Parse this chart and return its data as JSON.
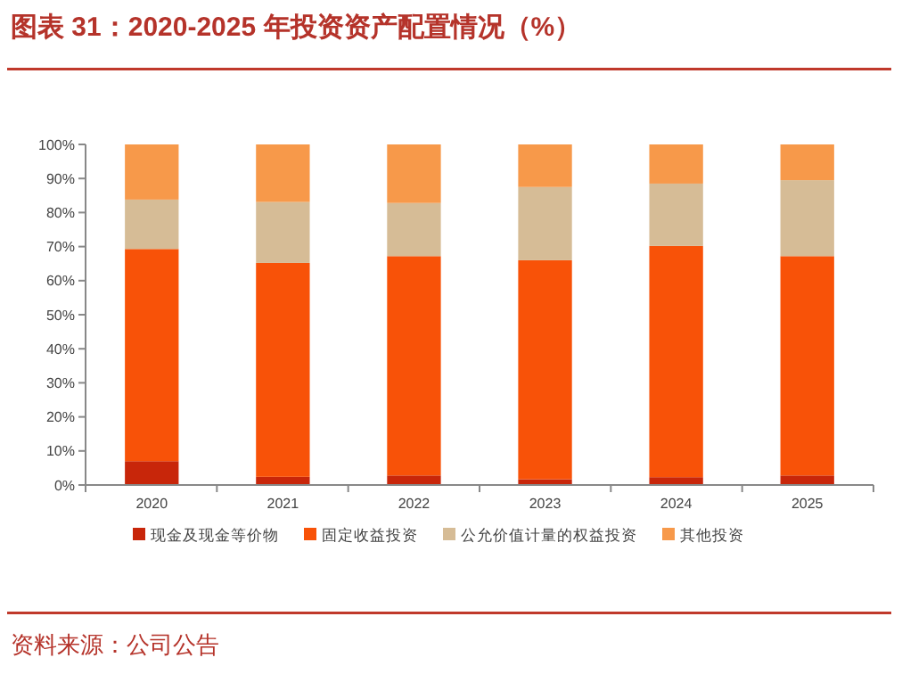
{
  "chart_data": {
    "type": "bar",
    "title": "图表 31：2020-2025 年投资资产配置情况（%）",
    "categories": [
      "2020",
      "2021",
      "2022",
      "2023",
      "2024",
      "2025"
    ],
    "stacked": true,
    "series": [
      {
        "name": "现金及现金等价物",
        "color": "#c8260a",
        "values": [
          7.0,
          2.4,
          2.8,
          1.7,
          2.3,
          2.8
        ]
      },
      {
        "name": "固定收益投资",
        "color": "#f85208",
        "values": [
          62.3,
          62.8,
          64.4,
          64.3,
          67.9,
          64.4
        ]
      },
      {
        "name": "公允价值计量的权益投资",
        "color": "#d6bc96",
        "values": [
          14.5,
          17.9,
          15.6,
          21.5,
          18.3,
          22.3
        ]
      },
      {
        "name": "其他投资",
        "color": "#f7994a",
        "values": [
          16.2,
          16.9,
          17.2,
          12.5,
          11.5,
          10.5
        ]
      }
    ],
    "ylim": [
      0,
      100
    ],
    "yticks": [
      {
        "value": 0,
        "label": "0%"
      },
      {
        "value": 10,
        "label": "10%"
      },
      {
        "value": 20,
        "label": "20%"
      },
      {
        "value": 30,
        "label": "30%"
      },
      {
        "value": 40,
        "label": "40%"
      },
      {
        "value": 50,
        "label": "50%"
      },
      {
        "value": 60,
        "label": "60%"
      },
      {
        "value": 70,
        "label": "70%"
      },
      {
        "value": 80,
        "label": "80%"
      },
      {
        "value": 90,
        "label": "90%"
      },
      {
        "value": 100,
        "label": "100%"
      }
    ],
    "grid": false,
    "legend": "bottom",
    "annotations": [
      "资料来源：公司公告"
    ]
  }
}
